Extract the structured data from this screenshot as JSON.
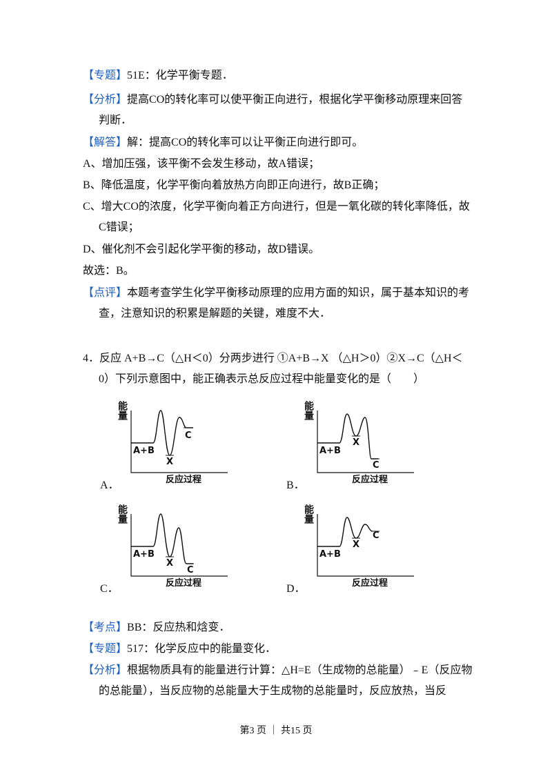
{
  "blocks_top": [
    {
      "tag": "【专题】",
      "text": "51E：化学平衡专题．"
    },
    {
      "tag": "【分析】",
      "text": "提高CO的转化率可以使平衡正向进行，根据化学平衡移动原理来回答判断．"
    },
    {
      "tag": "【解答】",
      "text": "解：提高CO的转化率可以让平衡正向进行即可。"
    },
    {
      "text": "A、增加压强，该平衡不会发生移动，故A错误；"
    },
    {
      "text": "B、降低温度，化学平衡向着放热方向即正向进行，故B正确；"
    },
    {
      "text": "C、增大CO的浓度，化学平衡向着正方向进行，但是一氧化碳的转化率降低，故C错误；"
    },
    {
      "text": "D、催化剂不会引起化学平衡的移动，故D错误。"
    },
    {
      "text": "故选：B。"
    },
    {
      "tag": "【点评】",
      "text": "本题考查学生化学平衡移动原理的应用方面的知识，属于基本知识的考查，注意知识的积累是解题的关键，难度不大．"
    }
  ],
  "question": {
    "stem": "4．反应 A+B→C（△H＜0）分两步进行 ①A+B→X （△H＞0）②X→C（△H＜0）下列示意图中，能正确表示总反应过程中能量变化的是（　　）",
    "options": [
      {
        "letter": "A．",
        "y_label": "能量",
        "x_label": "反应过程",
        "reactant": "A+B",
        "intermediate": "X",
        "product": "C"
      },
      {
        "letter": "B．",
        "y_label": "能量",
        "x_label": "反应过程",
        "reactant": "A+B",
        "intermediate": "X",
        "product": "C"
      },
      {
        "letter": "C．",
        "y_label": "能量",
        "x_label": "反应过程",
        "reactant": "A+B",
        "intermediate": "X",
        "product": "C"
      },
      {
        "letter": "D．",
        "y_label": "能量",
        "x_label": "反应过程",
        "reactant": "A+B",
        "intermediate": "X",
        "product": "C"
      }
    ]
  },
  "blocks_bottom": [
    {
      "tag": "【考点】",
      "text": "BB：反应热和焓变．"
    },
    {
      "tag": "【专题】",
      "text": "517：化学反应中的能量变化．"
    },
    {
      "tag": "【分析】",
      "text": "根据物质具有的能量进行计算：△H=E（生成物的总能量）﹣E（反应物的总能量），当反应物的总能量大于生成物的总能量时，反应放热，当反"
    }
  ],
  "footer": "第3 页 ｜ 共15 页"
}
